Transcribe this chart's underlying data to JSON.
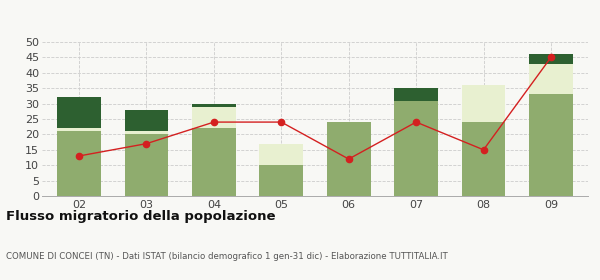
{
  "categories": [
    "02",
    "03",
    "04",
    "05",
    "06",
    "07",
    "08",
    "09"
  ],
  "iscritti_altri_comuni": [
    21,
    20,
    22,
    10,
    24,
    31,
    24,
    33
  ],
  "iscritti_estero": [
    1,
    1,
    7,
    7,
    0,
    0,
    12,
    10
  ],
  "iscritti_altri": [
    10,
    7,
    1,
    0,
    0,
    4,
    0,
    3
  ],
  "cancellati": [
    13,
    17,
    24,
    24,
    12,
    24,
    15,
    45
  ],
  "color_altri_comuni": "#8fac6e",
  "color_estero": "#e8f0d0",
  "color_altri": "#2d6030",
  "color_cancellati": "#d42020",
  "ylim": [
    0,
    50
  ],
  "yticks": [
    0,
    5,
    10,
    15,
    20,
    25,
    30,
    35,
    40,
    45,
    50
  ],
  "title": "Flusso migratorio della popolazione",
  "subtitle": "COMUNE DI CONCEI (TN) - Dati ISTAT (bilancio demografico 1 gen-31 dic) - Elaborazione TUTTITALIA.IT",
  "background_color": "#f8f8f5",
  "grid_color": "#cccccc",
  "bar_width": 0.65
}
